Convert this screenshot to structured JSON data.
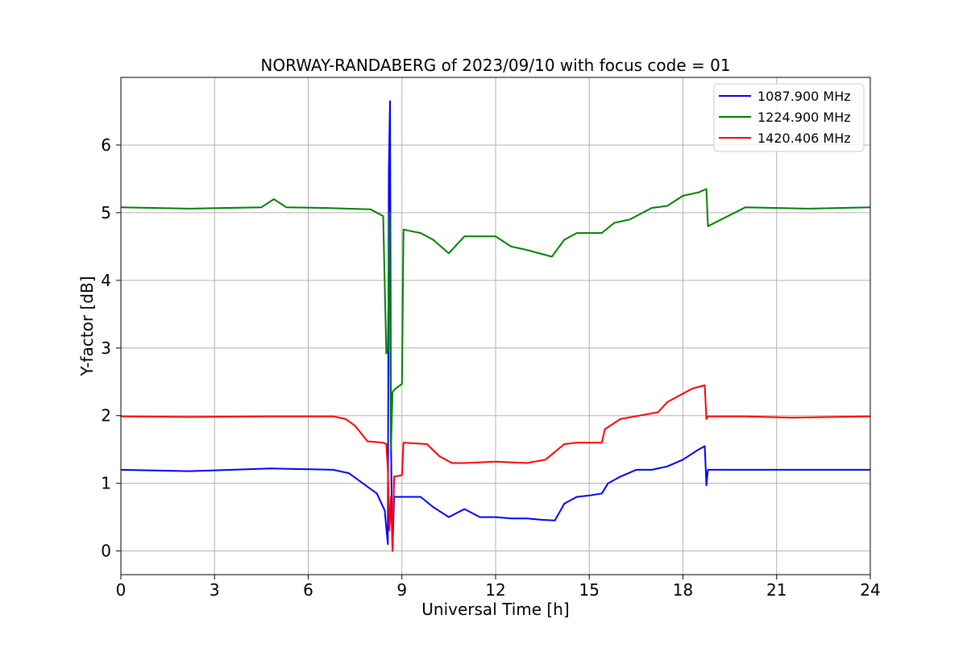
{
  "chart_data": {
    "type": "line",
    "title": "NORWAY-RANDABERG of 2023/09/10 with focus code = 01",
    "xlabel": "Universal Time [h]",
    "ylabel": "Y-factor [dB]",
    "xlim": [
      0,
      24
    ],
    "ylim": [
      -0.35,
      7.0
    ],
    "xticks": [
      0,
      3,
      6,
      9,
      12,
      15,
      18,
      21,
      24
    ],
    "yticks": [
      0,
      1,
      2,
      3,
      4,
      5,
      6
    ],
    "grid": true,
    "legend_position": "top-right",
    "series": [
      {
        "name": "1087.900 MHz",
        "color": "#0000ff",
        "x": [
          0,
          2.2,
          4.8,
          6.8,
          7.3,
          7.6,
          7.9,
          8.2,
          8.45,
          8.55,
          8.58,
          8.62,
          8.65,
          8.68,
          8.7,
          8.75,
          9.0,
          9.6,
          10.0,
          10.5,
          11.0,
          11.5,
          12.0,
          12.5,
          13.0,
          13.5,
          13.9,
          14.2,
          14.6,
          15.0,
          15.4,
          15.6,
          16.0,
          16.5,
          17.0,
          17.5,
          18.0,
          18.5,
          18.7,
          18.75,
          18.8,
          20.0,
          21.5,
          24.0
        ],
        "y": [
          1.2,
          1.18,
          1.22,
          1.2,
          1.15,
          1.05,
          0.95,
          0.85,
          0.6,
          0.1,
          5.6,
          6.65,
          1.6,
          0.5,
          0.0,
          0.8,
          0.8,
          0.8,
          0.65,
          0.5,
          0.62,
          0.5,
          0.5,
          0.48,
          0.48,
          0.46,
          0.45,
          0.7,
          0.8,
          0.82,
          0.85,
          1.0,
          1.1,
          1.2,
          1.2,
          1.25,
          1.35,
          1.5,
          1.55,
          0.97,
          1.2,
          1.2,
          1.2,
          1.2
        ]
      },
      {
        "name": "1224.900 MHz",
        "color": "#008000",
        "x": [
          0,
          2.2,
          4.5,
          4.9,
          5.3,
          6.5,
          8.0,
          8.4,
          8.5,
          8.55,
          8.6,
          8.65,
          8.7,
          8.8,
          9.0,
          9.05,
          9.6,
          10.0,
          10.5,
          11.0,
          12.0,
          12.5,
          13.0,
          13.8,
          14.2,
          14.6,
          15.0,
          15.4,
          15.8,
          16.3,
          17.0,
          17.5,
          18.0,
          18.5,
          18.75,
          18.8,
          20.0,
          22.0,
          24.0
        ],
        "y": [
          5.08,
          5.06,
          5.08,
          5.2,
          5.08,
          5.07,
          5.05,
          4.95,
          2.92,
          2.95,
          5.0,
          1.5,
          2.35,
          2.4,
          2.47,
          4.75,
          4.7,
          4.6,
          4.4,
          4.65,
          4.65,
          4.5,
          4.45,
          4.35,
          4.6,
          4.7,
          4.7,
          4.7,
          4.85,
          4.9,
          5.07,
          5.1,
          5.25,
          5.3,
          5.35,
          4.8,
          5.08,
          5.06,
          5.08
        ]
      },
      {
        "name": "1420.406 MHz",
        "color": "#ff0000",
        "x": [
          0,
          2.2,
          4.8,
          6.8,
          7.2,
          7.5,
          7.9,
          8.4,
          8.5,
          8.55,
          8.6,
          8.65,
          8.7,
          8.75,
          9.0,
          9.05,
          9.8,
          10.2,
          10.6,
          11.0,
          12.0,
          13.0,
          13.6,
          14.2,
          14.6,
          15.4,
          15.5,
          16.0,
          16.6,
          17.2,
          17.5,
          17.9,
          18.3,
          18.7,
          18.75,
          18.8,
          20.0,
          21.5,
          24.0
        ],
        "y": [
          1.99,
          1.98,
          1.99,
          1.99,
          1.95,
          1.85,
          1.62,
          1.6,
          1.58,
          1.2,
          0.3,
          0.8,
          0.0,
          1.1,
          1.12,
          1.6,
          1.58,
          1.4,
          1.3,
          1.3,
          1.32,
          1.3,
          1.35,
          1.58,
          1.6,
          1.6,
          1.8,
          1.95,
          2.0,
          2.05,
          2.2,
          2.3,
          2.4,
          2.45,
          1.95,
          1.99,
          1.99,
          1.97,
          1.99
        ]
      }
    ]
  }
}
